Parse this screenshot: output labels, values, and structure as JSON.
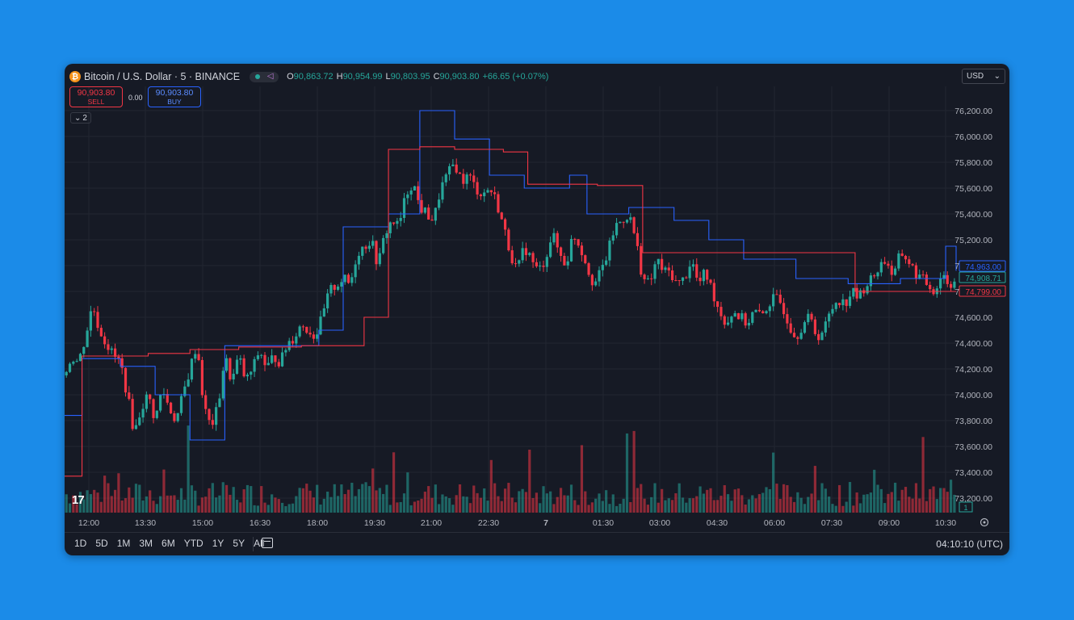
{
  "header": {
    "icon": "bitcoin-icon",
    "symbol_title": "Bitcoin / U.S. Dollar · 5 · BINANCE",
    "ohlc": {
      "o_label": "O",
      "o_value": "90,863.72",
      "h_label": "H",
      "h_value": "90,954.99",
      "l_label": "L",
      "l_value": "90,803.95",
      "c_label": "C",
      "c_value": "90,903.80",
      "change": "+66.65 (+0.07%)"
    },
    "currency": "USD"
  },
  "trade": {
    "sell_price": "90,903.80",
    "sell_label": "SELL",
    "spread": "0.00",
    "buy_price": "90,903.80",
    "buy_label": "BUY"
  },
  "indicators_toggle": "2",
  "range_buttons": [
    "1D",
    "5D",
    "1M",
    "3M",
    "6M",
    "YTD",
    "1Y",
    "5Y",
    "All"
  ],
  "clock": "04:10:10 (UTC)",
  "colors": {
    "up": "#26a69a",
    "down": "#f23645",
    "blue_line": "#2962ff",
    "red_line": "#f23645",
    "background": "#161a25"
  },
  "chart_data": {
    "type": "candlestick",
    "yaxis_ticks": [
      73200,
      73400,
      73600,
      73800,
      74000,
      74200,
      74400,
      74600,
      74800,
      75000,
      75200,
      75400,
      75600,
      75800,
      76000,
      76200
    ],
    "yaxis_tick_labels": [
      "73,200.00",
      "73,400.00",
      "73,600.00",
      "73,800.00",
      "74,000.00",
      "74,200.00",
      "74,400.00",
      "74,600.00",
      "74,800.00",
      "75,000.00",
      "75,200.00",
      "75,400.00",
      "75,600.00",
      "75,800.00",
      "76,000.00",
      "76,200.00"
    ],
    "ylim": [
      73100,
      76300
    ],
    "xaxis_tick_labels": [
      "12:00",
      "13:30",
      "15:00",
      "16:30",
      "18:00",
      "19:30",
      "21:00",
      "22:30",
      "7",
      "01:30",
      "03:00",
      "04:30",
      "06:00",
      "07:30",
      "09:00",
      "10:30"
    ],
    "price_labels": [
      {
        "text": "74,963.00",
        "value": 74963,
        "color": "#2962ff"
      },
      {
        "text": "74,908.71",
        "value": 74908.71,
        "color": "#26a69a"
      },
      {
        "text": "74,799.00",
        "value": 74799,
        "color": "#f23645"
      }
    ],
    "volume_label": "1",
    "close_path": [
      [
        0,
        74150
      ],
      [
        2,
        74300
      ],
      [
        4,
        74250
      ],
      [
        6,
        74450
      ],
      [
        8,
        74700
      ],
      [
        10,
        74500
      ],
      [
        12,
        74400
      ],
      [
        14,
        74300
      ],
      [
        16,
        74250
      ],
      [
        18,
        74000
      ],
      [
        20,
        73700
      ],
      [
        22,
        73900
      ],
      [
        24,
        74000
      ],
      [
        26,
        73800
      ],
      [
        28,
        74050
      ],
      [
        30,
        73900
      ],
      [
        32,
        73800
      ],
      [
        34,
        74000
      ],
      [
        36,
        74200
      ],
      [
        38,
        74400
      ],
      [
        40,
        73900
      ],
      [
        42,
        73750
      ],
      [
        44,
        73900
      ],
      [
        46,
        74300
      ],
      [
        48,
        74100
      ],
      [
        50,
        74300
      ],
      [
        52,
        74100
      ],
      [
        54,
        74200
      ],
      [
        56,
        74350
      ],
      [
        58,
        74200
      ],
      [
        60,
        74300
      ],
      [
        62,
        74250
      ],
      [
        64,
        74400
      ],
      [
        66,
        74450
      ],
      [
        68,
        74550
      ],
      [
        70,
        74500
      ],
      [
        72,
        74450
      ],
      [
        74,
        74600
      ],
      [
        76,
        74800
      ],
      [
        78,
        74850
      ],
      [
        80,
        74900
      ],
      [
        82,
        74850
      ],
      [
        84,
        75100
      ],
      [
        86,
        75150
      ],
      [
        88,
        75200
      ],
      [
        90,
        75000
      ],
      [
        92,
        75250
      ],
      [
        94,
        75350
      ],
      [
        96,
        75300
      ],
      [
        98,
        75550
      ],
      [
        100,
        75650
      ],
      [
        102,
        75450
      ],
      [
        104,
        75400
      ],
      [
        106,
        75350
      ],
      [
        108,
        75600
      ],
      [
        110,
        75700
      ],
      [
        112,
        75800
      ],
      [
        114,
        75650
      ],
      [
        116,
        75700
      ],
      [
        118,
        75600
      ],
      [
        120,
        75550
      ],
      [
        122,
        75600
      ],
      [
        124,
        75500
      ],
      [
        126,
        75300
      ],
      [
        128,
        75100
      ],
      [
        130,
        74950
      ],
      [
        132,
        75150
      ],
      [
        134,
        75050
      ],
      [
        136,
        74950
      ],
      [
        138,
        75050
      ],
      [
        140,
        75250
      ],
      [
        142,
        75100
      ],
      [
        144,
        75000
      ],
      [
        146,
        75250
      ],
      [
        148,
        75150
      ],
      [
        150,
        75000
      ],
      [
        152,
        74850
      ],
      [
        154,
        74950
      ],
      [
        156,
        75100
      ],
      [
        158,
        75300
      ],
      [
        160,
        75350
      ],
      [
        162,
        75400
      ],
      [
        164,
        75200
      ],
      [
        166,
        74900
      ],
      [
        168,
        74850
      ],
      [
        170,
        75050
      ],
      [
        172,
        74950
      ],
      [
        174,
        74950
      ],
      [
        176,
        74850
      ],
      [
        178,
        74900
      ],
      [
        180,
        75050
      ],
      [
        182,
        74850
      ],
      [
        184,
        74950
      ],
      [
        186,
        74800
      ],
      [
        188,
        74650
      ],
      [
        190,
        74550
      ],
      [
        192,
        74650
      ],
      [
        194,
        74600
      ],
      [
        196,
        74550
      ],
      [
        198,
        74650
      ],
      [
        200,
        74600
      ],
      [
        202,
        74700
      ],
      [
        204,
        74750
      ],
      [
        206,
        74700
      ],
      [
        208,
        74550
      ],
      [
        210,
        74450
      ],
      [
        212,
        74550
      ],
      [
        214,
        74600
      ],
      [
        216,
        74450
      ],
      [
        218,
        74500
      ],
      [
        220,
        74650
      ],
      [
        222,
        74750
      ],
      [
        224,
        74700
      ],
      [
        226,
        74800
      ],
      [
        228,
        74750
      ],
      [
        230,
        74850
      ],
      [
        232,
        74900
      ],
      [
        234,
        75000
      ],
      [
        236,
        75050
      ],
      [
        238,
        74900
      ],
      [
        240,
        75100
      ],
      [
        242,
        75050
      ],
      [
        244,
        74950
      ],
      [
        246,
        74900
      ],
      [
        248,
        74850
      ],
      [
        250,
        74800
      ],
      [
        252,
        74950
      ],
      [
        254,
        74850
      ],
      [
        256,
        74900
      ]
    ],
    "blue_steps": [
      [
        0,
        73840
      ],
      [
        5,
        74280
      ],
      [
        16,
        74220
      ],
      [
        26,
        74000
      ],
      [
        36,
        73650
      ],
      [
        46,
        74380
      ],
      [
        66,
        74380
      ],
      [
        73,
        74500
      ],
      [
        80,
        75300
      ],
      [
        93,
        75400
      ],
      [
        102,
        76200
      ],
      [
        112,
        75980
      ],
      [
        122,
        75700
      ],
      [
        132,
        75600
      ],
      [
        145,
        75700
      ],
      [
        150,
        75400
      ],
      [
        162,
        75450
      ],
      [
        175,
        75350
      ],
      [
        185,
        75200
      ],
      [
        195,
        75050
      ],
      [
        210,
        74900
      ],
      [
        225,
        74860
      ],
      [
        240,
        74900
      ],
      [
        253,
        75150
      ],
      [
        256,
        74960
      ]
    ],
    "red_steps": [
      [
        0,
        73370
      ],
      [
        5,
        74300
      ],
      [
        24,
        74320
      ],
      [
        36,
        74350
      ],
      [
        50,
        74370
      ],
      [
        68,
        74380
      ],
      [
        86,
        74600
      ],
      [
        93,
        75900
      ],
      [
        102,
        75920
      ],
      [
        112,
        75900
      ],
      [
        126,
        75880
      ],
      [
        133,
        75630
      ],
      [
        143,
        75630
      ],
      [
        153,
        75620
      ],
      [
        166,
        75100
      ],
      [
        180,
        75100
      ],
      [
        195,
        75100
      ],
      [
        208,
        75100
      ],
      [
        227,
        74800
      ],
      [
        240,
        74800
      ],
      [
        256,
        74799
      ]
    ]
  }
}
